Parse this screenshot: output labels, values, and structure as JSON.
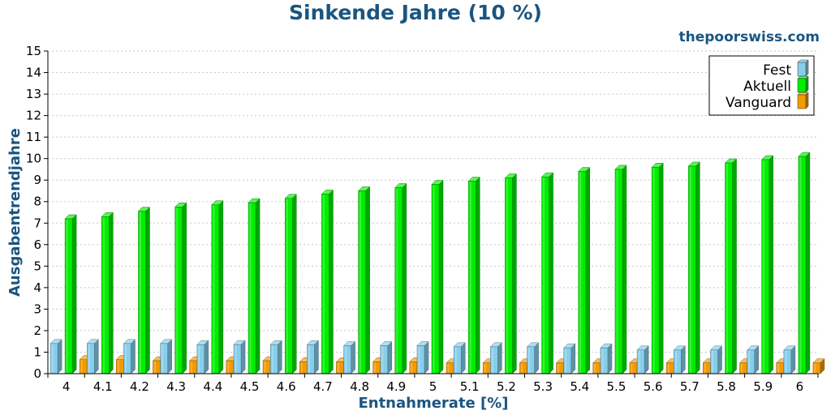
{
  "chart_data": {
    "type": "bar",
    "title": "Sinkende Jahre (10 %)",
    "watermark": "thepoorswiss.com",
    "xlabel": "Entnahmerate [%]",
    "ylabel": "Ausgabentrendjahre",
    "ylim": [
      0,
      15
    ],
    "yticks": [
      "0",
      "1",
      "2",
      "3",
      "4",
      "5",
      "6",
      "7",
      "8",
      "9",
      "10",
      "11",
      "12",
      "13",
      "14",
      "15"
    ],
    "grid": true,
    "legend_position": "top-right",
    "categories": [
      "4",
      "4.1",
      "4.2",
      "4.3",
      "4.4",
      "4.5",
      "4.6",
      "4.7",
      "4.8",
      "4.9",
      "5",
      "5.1",
      "5.2",
      "5.3",
      "5.4",
      "5.5",
      "5.6",
      "5.7",
      "5.8",
      "5.9",
      "6"
    ],
    "series": [
      {
        "name": "Fest",
        "color": "#87ceeb",
        "values": [
          1.4,
          1.4,
          1.4,
          1.4,
          1.35,
          1.35,
          1.35,
          1.35,
          1.3,
          1.3,
          1.3,
          1.25,
          1.25,
          1.25,
          1.2,
          1.2,
          1.1,
          1.1,
          1.1,
          1.1,
          1.1
        ]
      },
      {
        "name": "Aktuell",
        "color": "#00ee00",
        "values": [
          7.2,
          7.3,
          7.55,
          7.75,
          7.85,
          7.95,
          8.15,
          8.35,
          8.5,
          8.65,
          8.8,
          8.95,
          9.1,
          9.15,
          9.4,
          9.5,
          9.6,
          9.65,
          9.8,
          9.95,
          10.1
        ]
      },
      {
        "name": "Vanguard",
        "color": "#f29a00",
        "values": [
          0.65,
          0.65,
          0.6,
          0.6,
          0.6,
          0.6,
          0.55,
          0.55,
          0.55,
          0.55,
          0.5,
          0.5,
          0.5,
          0.5,
          0.5,
          0.5,
          0.5,
          0.5,
          0.5,
          0.5,
          0.5
        ]
      }
    ]
  }
}
